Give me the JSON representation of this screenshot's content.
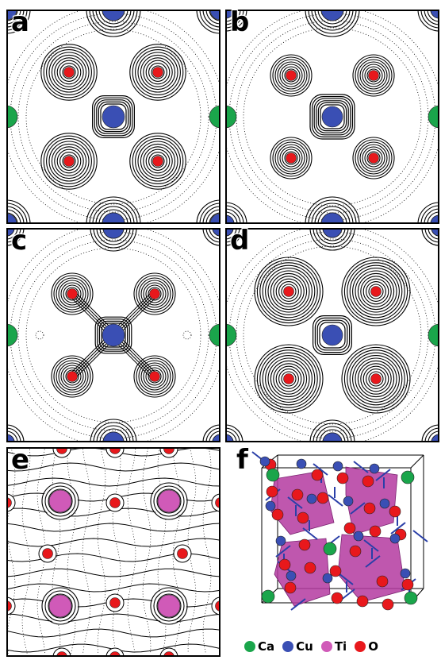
{
  "panels": [
    {
      "label": "a"
    },
    {
      "label": "b"
    },
    {
      "label": "c"
    },
    {
      "label": "d"
    },
    {
      "label": "e"
    },
    {
      "label": "f"
    }
  ],
  "legend": [
    {
      "symbol": "Ca",
      "color": "#1aa54b"
    },
    {
      "symbol": "Cu",
      "color": "#3a4fb4"
    },
    {
      "symbol": "Ti",
      "color": "#d05ab8"
    },
    {
      "symbol": "O",
      "color": "#e8181c"
    }
  ],
  "colors": {
    "ca": "#1aa54b",
    "cu": "#3a4fb4",
    "ti": "#d05ab8",
    "o": "#e8181c",
    "octahedron": "#b43aa0"
  }
}
